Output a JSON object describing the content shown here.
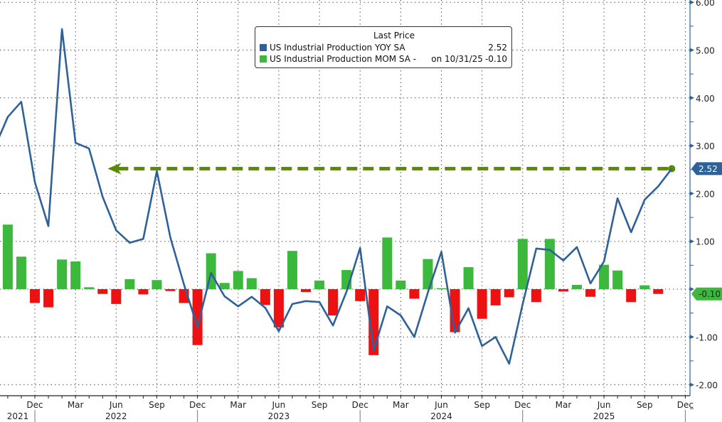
{
  "chart_data": {
    "type": "bar+line",
    "legend": {
      "title": "Last Price",
      "position": "top-center",
      "entries": [
        {
          "name": "US Industrial Production YOY SA",
          "suffix": "",
          "last": "2.52",
          "color": "#2f6199"
        },
        {
          "name": "US Industrial Production MOM SA -",
          "suffix": "on 10/31/25",
          "last": "-0.10",
          "color": "#3cb93c"
        }
      ]
    },
    "y_axis": {
      "position": "right",
      "range": [
        -2.2,
        6.05
      ],
      "ticks": [
        "6.00",
        "5.00",
        "4.00",
        "3.00",
        "2.00",
        "1.00",
        "0.00",
        "-1.00",
        "-2.00"
      ],
      "tick_values": [
        6,
        5,
        4,
        3,
        2,
        1,
        0,
        -1,
        -2
      ]
    },
    "x_axis": {
      "month_labels": [
        {
          "date": "2021-12",
          "label": "Dec"
        },
        {
          "date": "2022-03",
          "label": "Mar"
        },
        {
          "date": "2022-06",
          "label": "Jun"
        },
        {
          "date": "2022-09",
          "label": "Sep"
        },
        {
          "date": "2022-12",
          "label": "Dec"
        },
        {
          "date": "2023-03",
          "label": "Mar"
        },
        {
          "date": "2023-06",
          "label": "Jun"
        },
        {
          "date": "2023-09",
          "label": "Sep"
        },
        {
          "date": "2023-12",
          "label": "Dec"
        },
        {
          "date": "2024-03",
          "label": "Mar"
        },
        {
          "date": "2024-06",
          "label": "Jun"
        },
        {
          "date": "2024-09",
          "label": "Sep"
        },
        {
          "date": "2024-12",
          "label": "Dec"
        },
        {
          "date": "2025-03",
          "label": "Mar"
        },
        {
          "date": "2025-06",
          "label": "Jun"
        },
        {
          "date": "2025-09",
          "label": "Sep"
        },
        {
          "date": "2025-12",
          "label": "Dec"
        }
      ],
      "year_labels": [
        {
          "date": "2021-10",
          "label": "2021"
        },
        {
          "date": "2022-06",
          "label": "2022"
        },
        {
          "date": "2023-06",
          "label": "2023"
        },
        {
          "date": "2024-06",
          "label": "2024"
        },
        {
          "date": "2025-06",
          "label": "2025"
        }
      ]
    },
    "grid": true,
    "series": [
      {
        "name": "US Industrial Production YOY SA",
        "type": "line",
        "color": "#2f6199",
        "start": "2021-09",
        "values": [
          2.94,
          3.6,
          3.92,
          2.24,
          1.32,
          5.44,
          3.06,
          2.94,
          1.93,
          1.23,
          0.97,
          1.05,
          2.47,
          1.08,
          0.1,
          -0.79,
          0.34,
          -0.15,
          -0.36,
          -0.16,
          -0.39,
          -0.88,
          -0.31,
          -0.25,
          -0.27,
          -0.76,
          -0.05,
          0.86,
          -1.28,
          -0.36,
          -0.55,
          -1.0,
          -0.07,
          0.78,
          -0.91,
          -0.4,
          -1.19,
          -1.0,
          -1.56,
          -0.31,
          0.85,
          0.82,
          0.6,
          0.88,
          0.12,
          0.58,
          1.9,
          1.19,
          1.87,
          2.15,
          2.52
        ]
      },
      {
        "name": "US Industrial Production MOM SA",
        "type": "bar",
        "color_pos": "#3cb93c",
        "color_neg": "#ee1111",
        "start": "2021-10",
        "values": [
          1.35,
          0.68,
          -0.29,
          -0.38,
          0.62,
          0.58,
          0.04,
          -0.1,
          -0.31,
          0.21,
          -0.11,
          0.19,
          -0.04,
          -0.29,
          -1.17,
          0.75,
          0.13,
          0.38,
          0.23,
          -0.33,
          -0.8,
          0.8,
          -0.06,
          0.18,
          -0.55,
          0.4,
          -0.25,
          -1.38,
          1.08,
          0.18,
          -0.2,
          0.63,
          0.02,
          -0.9,
          0.46,
          -0.62,
          -0.34,
          -0.17,
          1.05,
          -0.27,
          1.05,
          -0.05,
          0.09,
          -0.16,
          0.51,
          0.39,
          -0.27,
          0.08,
          -0.1
        ]
      }
    ],
    "annotations": {
      "reference_line": {
        "value": 2.52,
        "from": "2022-06",
        "to": "2025-11",
        "color": "#5a8a00",
        "style": "dashed-arrow"
      },
      "last_tags": [
        {
          "label": "2.52",
          "value": 2.52,
          "color": "#2f6199"
        },
        {
          "label": "-0.10",
          "value": -0.1,
          "color": "#3cb93c"
        }
      ]
    }
  }
}
